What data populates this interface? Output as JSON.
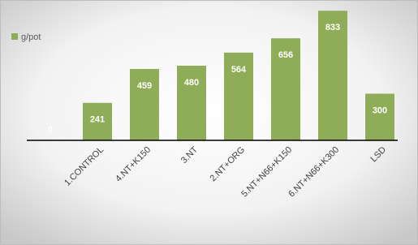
{
  "chart_data": {
    "type": "bar",
    "categories": [
      null,
      "1.CONTROL",
      "4.NT+K150",
      "3.NT",
      "2.NT+ORG",
      "5.NT+N66+K150",
      "6.NT+N66+K300",
      "LSD"
    ],
    "series": [
      {
        "name": "g/pot",
        "color": "#8fad59",
        "values": [
          0,
          241,
          459,
          480,
          564,
          656,
          833,
          300
        ]
      }
    ],
    "ylim": [
      0,
      850
    ],
    "legend": "top-left"
  }
}
